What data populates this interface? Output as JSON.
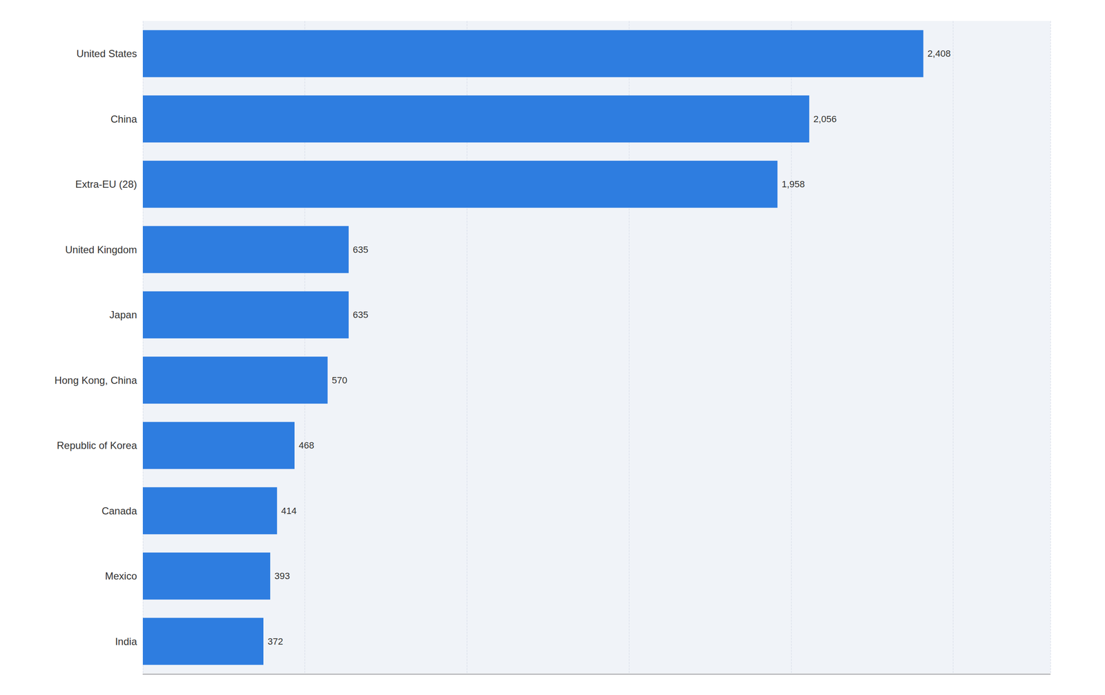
{
  "chart_data": {
    "type": "bar",
    "orientation": "horizontal",
    "categories": [
      "India",
      "Mexico",
      "Canada",
      "Republic of Korea",
      "Hong Kong, China",
      "Japan",
      "United Kingdom",
      "Extra-EU (28)",
      "China",
      "United States"
    ],
    "values": [
      372,
      393,
      414,
      468,
      570,
      635,
      635,
      1958,
      2056,
      2408
    ],
    "value_labels": [
      "372",
      "393",
      "414",
      "468",
      "570",
      "635",
      "635",
      "1,958",
      "2,056",
      "2,408"
    ],
    "color": "#2e7de0",
    "xlim": [
      0,
      2800
    ],
    "xticks": [
      0,
      500,
      1000,
      1500,
      2000,
      2500
    ],
    "grid": true,
    "data_labels": true,
    "tick_labels": "y"
  }
}
